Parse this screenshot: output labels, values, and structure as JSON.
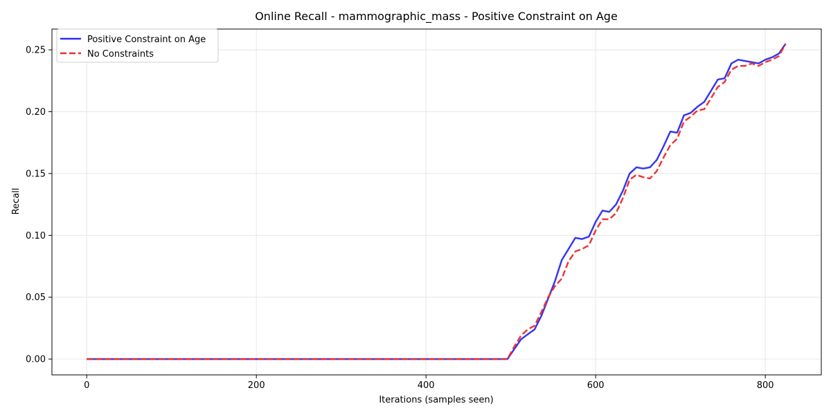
{
  "chart_data": {
    "type": "line",
    "title": "Online Recall - mammographic_mass - Positive Constraint on Age",
    "xlabel": "Iterations (samples seen)",
    "ylabel": "Recall",
    "xlim": [
      -41,
      866
    ],
    "ylim": [
      -0.0128,
      0.2668
    ],
    "xticks": [
      0,
      200,
      400,
      600,
      800
    ],
    "xtick_labels": [
      "0",
      "200",
      "400",
      "600",
      "800"
    ],
    "yticks": [
      0.0,
      0.05,
      0.1,
      0.15,
      0.2,
      0.25
    ],
    "ytick_labels": [
      "0.00",
      "0.05",
      "0.10",
      "0.15",
      "0.20",
      "0.25"
    ],
    "grid": true,
    "legend_position": "upper-left",
    "series": [
      {
        "name": "Positive Constraint on Age",
        "color": "#2b2bef",
        "style": "solid",
        "x": [
          0,
          100,
          200,
          300,
          400,
          496,
          504,
          512,
          520,
          528,
          536,
          544,
          552,
          560,
          568,
          576,
          584,
          592,
          600,
          608,
          616,
          624,
          632,
          640,
          648,
          656,
          664,
          672,
          680,
          688,
          696,
          704,
          712,
          720,
          728,
          736,
          744,
          752,
          760,
          768,
          776,
          784,
          792,
          800,
          808,
          816,
          824
        ],
        "values": [
          0,
          0,
          0,
          0,
          0,
          0,
          0.008,
          0.016,
          0.02,
          0.024,
          0.035,
          0.049,
          0.063,
          0.08,
          0.089,
          0.098,
          0.097,
          0.099,
          0.111,
          0.12,
          0.119,
          0.125,
          0.136,
          0.15,
          0.155,
          0.154,
          0.155,
          0.161,
          0.172,
          0.184,
          0.183,
          0.197,
          0.199,
          0.204,
          0.208,
          0.217,
          0.226,
          0.227,
          0.239,
          0.242,
          0.241,
          0.24,
          0.239,
          0.242,
          0.244,
          0.247,
          0.255
        ]
      },
      {
        "name": "No Constraints",
        "color": "#ee2b2b",
        "style": "dashed",
        "x": [
          0,
          100,
          200,
          300,
          400,
          496,
          504,
          512,
          520,
          528,
          536,
          544,
          552,
          560,
          568,
          576,
          584,
          592,
          600,
          608,
          616,
          624,
          632,
          640,
          648,
          656,
          664,
          672,
          680,
          688,
          696,
          704,
          712,
          720,
          728,
          736,
          744,
          752,
          760,
          768,
          776,
          784,
          792,
          800,
          808,
          816,
          824
        ],
        "values": [
          0,
          0,
          0,
          0,
          0,
          0,
          0.01,
          0.019,
          0.024,
          0.027,
          0.038,
          0.05,
          0.059,
          0.065,
          0.079,
          0.087,
          0.089,
          0.092,
          0.104,
          0.113,
          0.113,
          0.118,
          0.13,
          0.145,
          0.149,
          0.147,
          0.146,
          0.152,
          0.163,
          0.173,
          0.178,
          0.192,
          0.196,
          0.201,
          0.202,
          0.211,
          0.22,
          0.224,
          0.234,
          0.237,
          0.237,
          0.239,
          0.237,
          0.24,
          0.242,
          0.245,
          0.255
        ]
      }
    ]
  }
}
